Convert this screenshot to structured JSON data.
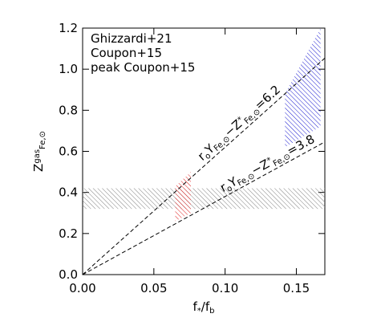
{
  "chart_data": {
    "type": "region",
    "xlabel": [
      "f",
      "*",
      "/f",
      "b"
    ],
    "ylabel": [
      "Z",
      "gas",
      "Fe,⊙"
    ],
    "xlim": [
      0,
      0.17
    ],
    "ylim": [
      0,
      1.2
    ],
    "xticks": [
      {
        "value": 0,
        "label": "0.00"
      },
      {
        "value": 0.05,
        "label": "0.05"
      },
      {
        "value": 0.1,
        "label": "0.10"
      },
      {
        "value": 0.15,
        "label": "0.15"
      }
    ],
    "yticks": [
      {
        "value": 0,
        "label": "0.0"
      },
      {
        "value": 0.2,
        "label": "0.2"
      },
      {
        "value": 0.4,
        "label": "0.4"
      },
      {
        "value": 0.6,
        "label": "0.6"
      },
      {
        "value": 0.8,
        "label": "0.8"
      },
      {
        "value": 1.0,
        "label": "1.0"
      },
      {
        "value": 1.2,
        "label": "1.2"
      }
    ],
    "series": [
      {
        "name": "Ghizzardi+21",
        "color": "#808080",
        "x": [
          0,
          0,
          0.17,
          0.17
        ],
        "y": [
          0.32,
          0.42,
          0.42,
          0.32
        ]
      },
      {
        "name": "Coupon+15",
        "color": "#e02020",
        "x": [
          0.065,
          0.065,
          0.076,
          0.076
        ],
        "y": [
          0.26,
          0.43,
          0.5,
          0.3
        ]
      },
      {
        "name": "peak Coupon+15",
        "color": "#1a1ad0",
        "x": [
          0.142,
          0.142,
          0.167,
          0.167
        ],
        "y": [
          0.62,
          0.88,
          1.2,
          0.72
        ]
      }
    ],
    "lines": [
      {
        "label": [
          "r",
          "o",
          "Y",
          "Fe,⊙",
          "−Z",
          "*",
          "Fe,⊙",
          "=6.2"
        ],
        "x": [
          0,
          0.17
        ],
        "y": [
          0,
          1.054
        ]
      },
      {
        "label": [
          "r",
          "o",
          "Y",
          "Fe,⊙",
          "−Z",
          "*",
          "Fe,⊙",
          "=3.8"
        ],
        "x": [
          0,
          0.17
        ],
        "y": [
          0,
          0.646
        ]
      }
    ]
  }
}
